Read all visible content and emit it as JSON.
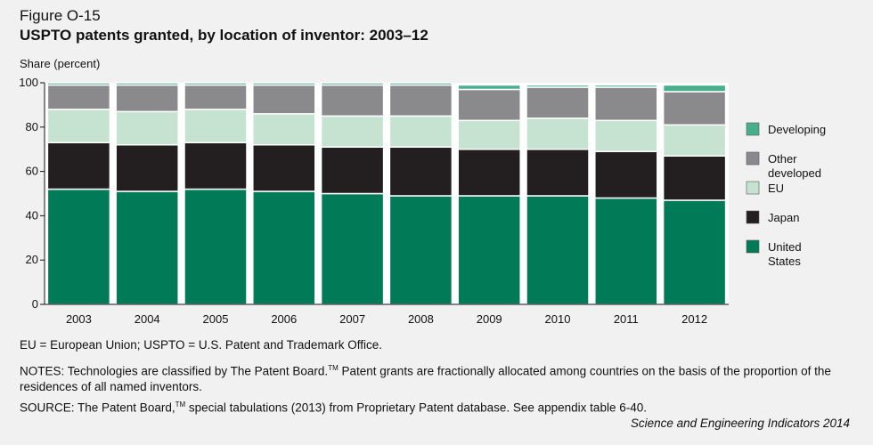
{
  "figure_label": "Figure O-15",
  "title": "USPTO patents granted, by location of inventor: 2003–12",
  "y_unit_label": "Share (percent)",
  "chart_data": {
    "type": "bar",
    "stacked": true,
    "categories": [
      "2003",
      "2004",
      "2005",
      "2006",
      "2007",
      "2008",
      "2009",
      "2010",
      "2011",
      "2012"
    ],
    "series": [
      {
        "name": "United States",
        "label_lines": [
          "United",
          "States"
        ],
        "color": "#007a57",
        "values": [
          52,
          51,
          52,
          51,
          50,
          49,
          49,
          49,
          48,
          47
        ]
      },
      {
        "name": "Japan",
        "label_lines": [
          "Japan"
        ],
        "color": "#231f20",
        "values": [
          21,
          21,
          21,
          21,
          21,
          22,
          21,
          21,
          21,
          20
        ]
      },
      {
        "name": "EU",
        "label_lines": [
          "EU"
        ],
        "color": "#c6e3d2",
        "values": [
          15,
          15,
          15,
          14,
          14,
          14,
          13,
          14,
          14,
          14
        ]
      },
      {
        "name": "Other developed",
        "label_lines": [
          "Other",
          "developed"
        ],
        "color": "#8a8a8d",
        "values": [
          11,
          12,
          11,
          13,
          14,
          14,
          14,
          14,
          15,
          15
        ]
      },
      {
        "name": "Developing",
        "label_lines": [
          "Developing"
        ],
        "color": "#49ae8c",
        "values": [
          1,
          1,
          1,
          1,
          1,
          1,
          2,
          1,
          1,
          3
        ]
      }
    ],
    "ylim": [
      0,
      100
    ],
    "yticks": [
      0,
      20,
      40,
      60,
      80,
      100
    ],
    "grid": false,
    "legend_position": "right"
  },
  "footnotes": {
    "abbreviations": "EU = European Union; USPTO = U.S. Patent and Trademark Office.",
    "notes_pre": "NOTES: Technologies are classified by The Patent Board.",
    "notes_tm": "TM",
    "notes_post": " Patent grants are fractionally allocated among countries on the basis of the proportion of the residences of all named inventors.",
    "source_pre": "SOURCE: The Patent Board,",
    "source_tm": "TM",
    "source_post": " special tabulations (2013) from Proprietary Patent database. See appendix table 6-40."
  },
  "credit": "Science and Engineering Indicators 2014"
}
